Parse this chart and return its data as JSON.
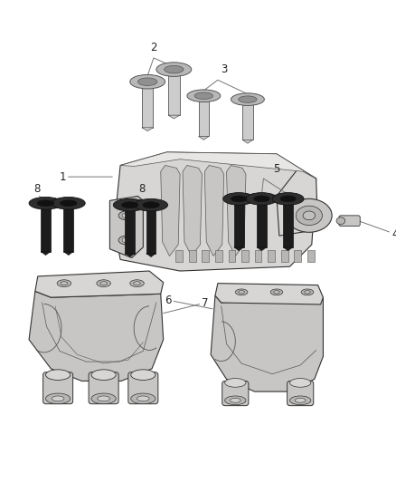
{
  "bg_color": "#ffffff",
  "fig_width": 4.38,
  "fig_height": 5.33,
  "dpi": 100,
  "lc": "#555555",
  "lc2": "#333333",
  "lw_main": 0.8,
  "lw_thin": 0.5,
  "part_fill": "#e8e6e4",
  "part_fill2": "#d8d6d4",
  "part_fill3": "#c8c6c4",
  "part_fill4": "#b8b6b4",
  "label_fs": 8.5,
  "label_color": "#222222",
  "arrow_color": "#777777",
  "bolt_light_shaft": "#cccccc",
  "bolt_light_head": "#b8b8b8",
  "bolt_light_center": "#909090",
  "bolt_dark_shaft": "#1c1c1c",
  "bolt_dark_head": "#2e2e2e",
  "bolt_dark_center": "#111111"
}
